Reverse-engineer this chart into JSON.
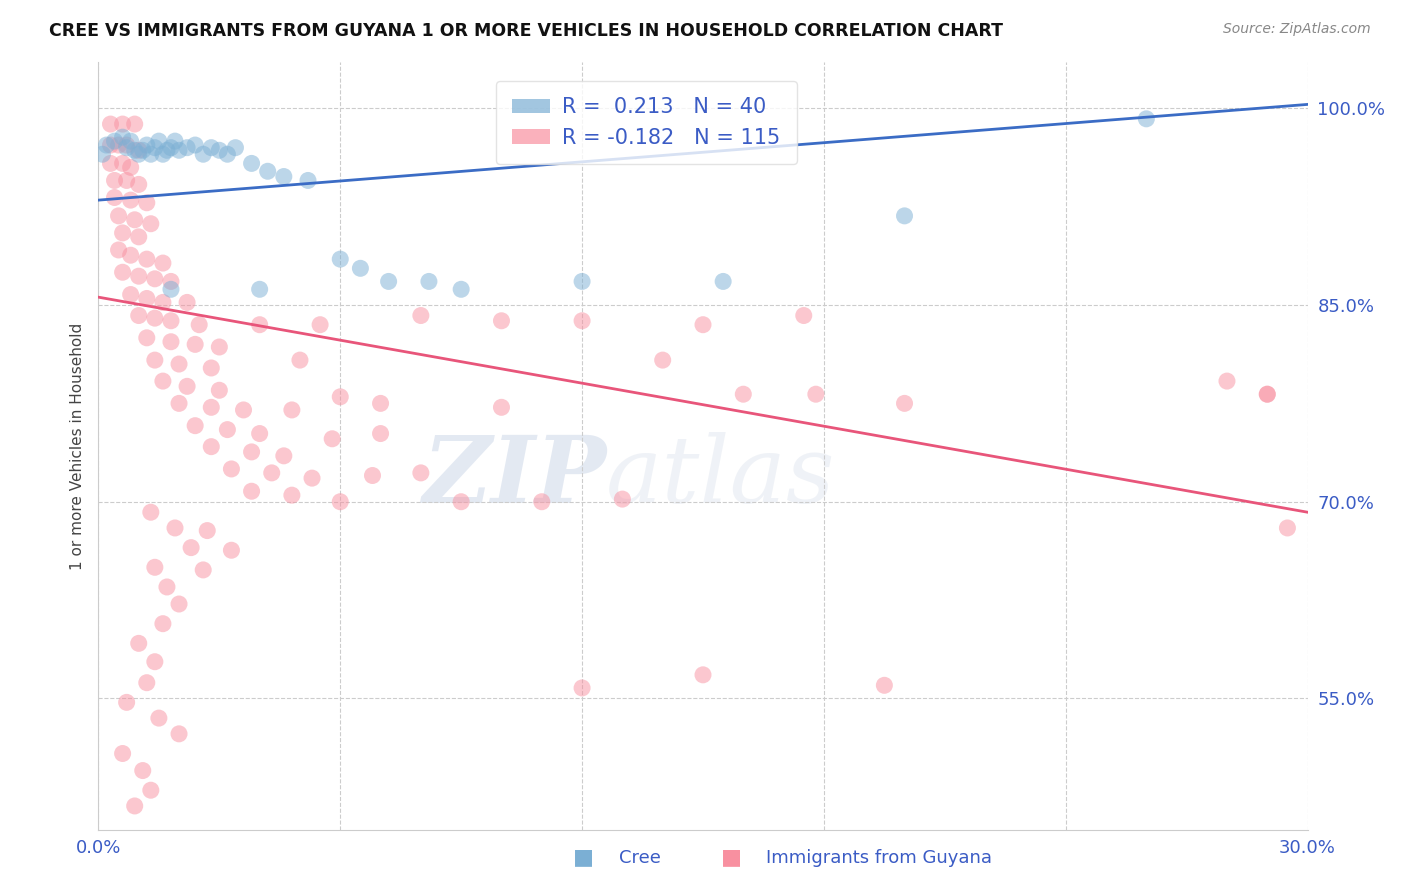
{
  "title": "CREE VS IMMIGRANTS FROM GUYANA 1 OR MORE VEHICLES IN HOUSEHOLD CORRELATION CHART",
  "source": "Source: ZipAtlas.com",
  "ylabel": "1 or more Vehicles in Household",
  "xlabel_cree": "Cree",
  "xlabel_immigrants": "Immigrants from Guyana",
  "xmin": 0.0,
  "xmax": 0.3,
  "ymin": 0.45,
  "ymax": 1.035,
  "yticks": [
    0.55,
    0.7,
    0.85,
    1.0
  ],
  "ytick_labels": [
    "55.0%",
    "70.0%",
    "85.0%",
    "100.0%"
  ],
  "legend_R_cree": "0.213",
  "legend_N_cree": "40",
  "legend_R_immigrants": "-0.182",
  "legend_N_immigrants": "115",
  "cree_color": "#7BAFD4",
  "immigrants_color": "#F890A0",
  "trend_cree_color": "#3B6CC5",
  "trend_immigrants_color": "#E8557A",
  "watermark_zip": "ZIP",
  "watermark_atlas": "atlas",
  "cree_trend_x": [
    0.0,
    0.3
  ],
  "cree_trend_y": [
    0.93,
    1.003
  ],
  "imm_trend_x": [
    0.0,
    0.3
  ],
  "imm_trend_y": [
    0.856,
    0.692
  ],
  "cree_points": [
    [
      0.001,
      0.965
    ],
    [
      0.002,
      0.972
    ],
    [
      0.004,
      0.975
    ],
    [
      0.006,
      0.978
    ],
    [
      0.007,
      0.97
    ],
    [
      0.008,
      0.975
    ],
    [
      0.009,
      0.968
    ],
    [
      0.01,
      0.965
    ],
    [
      0.011,
      0.968
    ],
    [
      0.012,
      0.972
    ],
    [
      0.013,
      0.965
    ],
    [
      0.014,
      0.97
    ],
    [
      0.015,
      0.975
    ],
    [
      0.016,
      0.965
    ],
    [
      0.017,
      0.968
    ],
    [
      0.018,
      0.97
    ],
    [
      0.019,
      0.975
    ],
    [
      0.02,
      0.968
    ],
    [
      0.022,
      0.97
    ],
    [
      0.024,
      0.972
    ],
    [
      0.026,
      0.965
    ],
    [
      0.028,
      0.97
    ],
    [
      0.03,
      0.968
    ],
    [
      0.032,
      0.965
    ],
    [
      0.034,
      0.97
    ],
    [
      0.038,
      0.958
    ],
    [
      0.042,
      0.952
    ],
    [
      0.046,
      0.948
    ],
    [
      0.052,
      0.945
    ],
    [
      0.06,
      0.885
    ],
    [
      0.065,
      0.878
    ],
    [
      0.072,
      0.868
    ],
    [
      0.082,
      0.868
    ],
    [
      0.09,
      0.862
    ],
    [
      0.12,
      0.868
    ],
    [
      0.155,
      0.868
    ],
    [
      0.2,
      0.918
    ],
    [
      0.26,
      0.992
    ],
    [
      0.018,
      0.862
    ],
    [
      0.04,
      0.862
    ]
  ],
  "immigrants_points": [
    [
      0.003,
      0.988
    ],
    [
      0.006,
      0.988
    ],
    [
      0.009,
      0.988
    ],
    [
      0.003,
      0.972
    ],
    [
      0.005,
      0.972
    ],
    [
      0.007,
      0.972
    ],
    [
      0.01,
      0.968
    ],
    [
      0.003,
      0.958
    ],
    [
      0.006,
      0.958
    ],
    [
      0.008,
      0.955
    ],
    [
      0.004,
      0.945
    ],
    [
      0.007,
      0.945
    ],
    [
      0.01,
      0.942
    ],
    [
      0.004,
      0.932
    ],
    [
      0.008,
      0.93
    ],
    [
      0.012,
      0.928
    ],
    [
      0.005,
      0.918
    ],
    [
      0.009,
      0.915
    ],
    [
      0.013,
      0.912
    ],
    [
      0.006,
      0.905
    ],
    [
      0.01,
      0.902
    ],
    [
      0.005,
      0.892
    ],
    [
      0.008,
      0.888
    ],
    [
      0.012,
      0.885
    ],
    [
      0.016,
      0.882
    ],
    [
      0.006,
      0.875
    ],
    [
      0.01,
      0.872
    ],
    [
      0.014,
      0.87
    ],
    [
      0.018,
      0.868
    ],
    [
      0.008,
      0.858
    ],
    [
      0.012,
      0.855
    ],
    [
      0.016,
      0.852
    ],
    [
      0.022,
      0.852
    ],
    [
      0.01,
      0.842
    ],
    [
      0.014,
      0.84
    ],
    [
      0.018,
      0.838
    ],
    [
      0.025,
      0.835
    ],
    [
      0.012,
      0.825
    ],
    [
      0.018,
      0.822
    ],
    [
      0.024,
      0.82
    ],
    [
      0.03,
      0.818
    ],
    [
      0.014,
      0.808
    ],
    [
      0.02,
      0.805
    ],
    [
      0.028,
      0.802
    ],
    [
      0.016,
      0.792
    ],
    [
      0.022,
      0.788
    ],
    [
      0.03,
      0.785
    ],
    [
      0.02,
      0.775
    ],
    [
      0.028,
      0.772
    ],
    [
      0.036,
      0.77
    ],
    [
      0.024,
      0.758
    ],
    [
      0.032,
      0.755
    ],
    [
      0.04,
      0.752
    ],
    [
      0.028,
      0.742
    ],
    [
      0.038,
      0.738
    ],
    [
      0.046,
      0.735
    ],
    [
      0.033,
      0.725
    ],
    [
      0.043,
      0.722
    ],
    [
      0.053,
      0.718
    ],
    [
      0.038,
      0.708
    ],
    [
      0.048,
      0.705
    ],
    [
      0.06,
      0.7
    ],
    [
      0.013,
      0.692
    ],
    [
      0.019,
      0.68
    ],
    [
      0.027,
      0.678
    ],
    [
      0.023,
      0.665
    ],
    [
      0.033,
      0.663
    ],
    [
      0.014,
      0.65
    ],
    [
      0.026,
      0.648
    ],
    [
      0.017,
      0.635
    ],
    [
      0.02,
      0.622
    ],
    [
      0.016,
      0.607
    ],
    [
      0.01,
      0.592
    ],
    [
      0.014,
      0.578
    ],
    [
      0.012,
      0.562
    ],
    [
      0.007,
      0.547
    ],
    [
      0.015,
      0.535
    ],
    [
      0.02,
      0.523
    ],
    [
      0.006,
      0.508
    ],
    [
      0.011,
      0.495
    ],
    [
      0.013,
      0.48
    ],
    [
      0.009,
      0.468
    ],
    [
      0.1,
      0.838
    ],
    [
      0.12,
      0.838
    ],
    [
      0.14,
      0.808
    ],
    [
      0.16,
      0.782
    ],
    [
      0.178,
      0.782
    ],
    [
      0.2,
      0.775
    ],
    [
      0.28,
      0.792
    ],
    [
      0.29,
      0.782
    ],
    [
      0.08,
      0.842
    ],
    [
      0.1,
      0.772
    ],
    [
      0.12,
      0.558
    ],
    [
      0.175,
      0.842
    ],
    [
      0.055,
      0.835
    ],
    [
      0.07,
      0.775
    ],
    [
      0.09,
      0.7
    ],
    [
      0.11,
      0.7
    ],
    [
      0.13,
      0.702
    ],
    [
      0.15,
      0.835
    ],
    [
      0.04,
      0.835
    ],
    [
      0.05,
      0.808
    ],
    [
      0.06,
      0.78
    ],
    [
      0.07,
      0.752
    ],
    [
      0.08,
      0.722
    ],
    [
      0.048,
      0.77
    ],
    [
      0.058,
      0.748
    ],
    [
      0.068,
      0.72
    ],
    [
      0.15,
      0.568
    ],
    [
      0.29,
      0.782
    ],
    [
      0.195,
      0.56
    ],
    [
      0.295,
      0.68
    ]
  ]
}
